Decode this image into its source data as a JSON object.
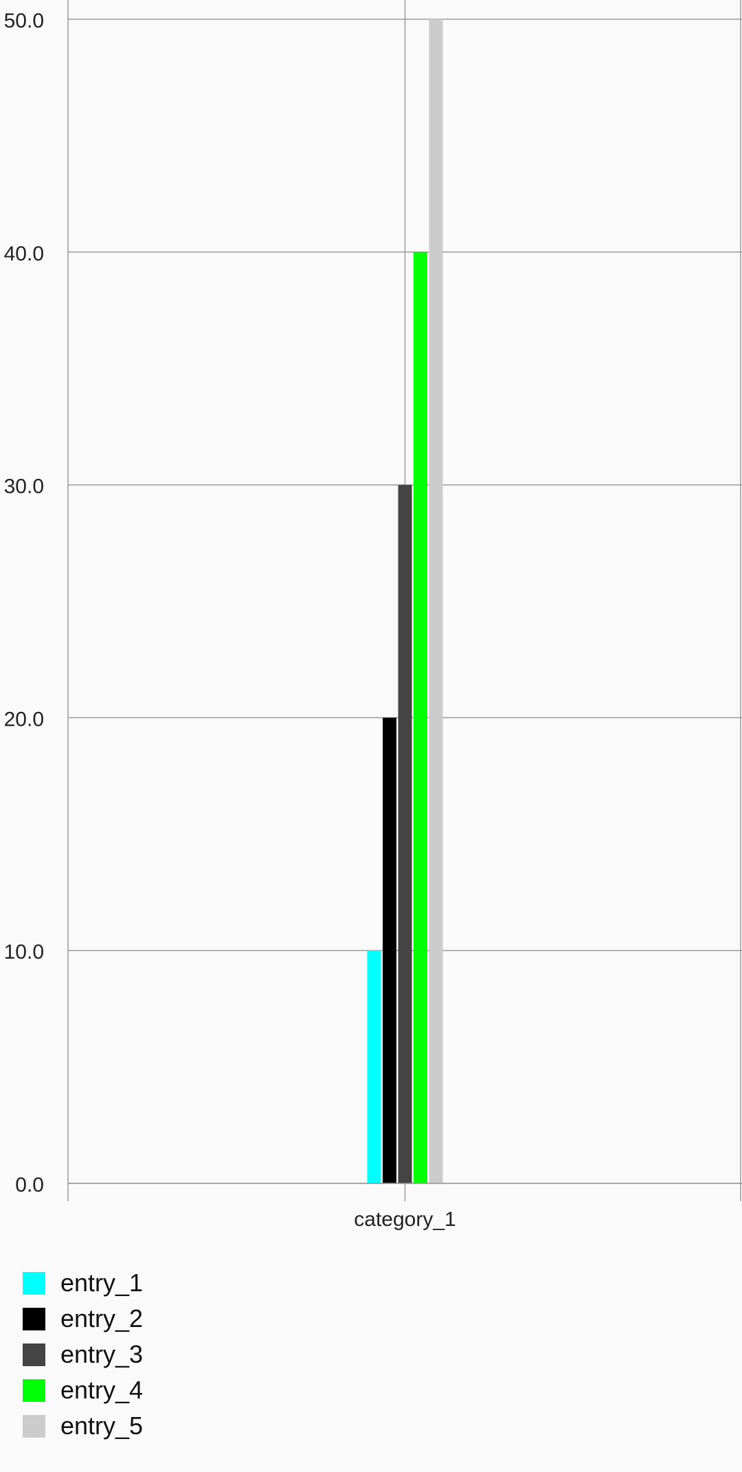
{
  "chart_data": {
    "type": "bar",
    "categories": [
      "category_1"
    ],
    "series": [
      {
        "name": "entry_1",
        "values": [
          10
        ],
        "color": "#00ffff"
      },
      {
        "name": "entry_2",
        "values": [
          20
        ],
        "color": "#000000"
      },
      {
        "name": "entry_3",
        "values": [
          30
        ],
        "color": "#444444"
      },
      {
        "name": "entry_4",
        "values": [
          40
        ],
        "color": "#00ff00"
      },
      {
        "name": "entry_5",
        "values": [
          50
        ],
        "color": "#cccccc"
      }
    ],
    "title": "",
    "xlabel": "",
    "ylabel": "",
    "ylim": [
      0,
      50
    ],
    "yticks": [
      "0.0",
      "10.0",
      "20.0",
      "30.0",
      "40.0",
      "50.0"
    ],
    "grid": true,
    "legend_position": "bottom-left"
  }
}
